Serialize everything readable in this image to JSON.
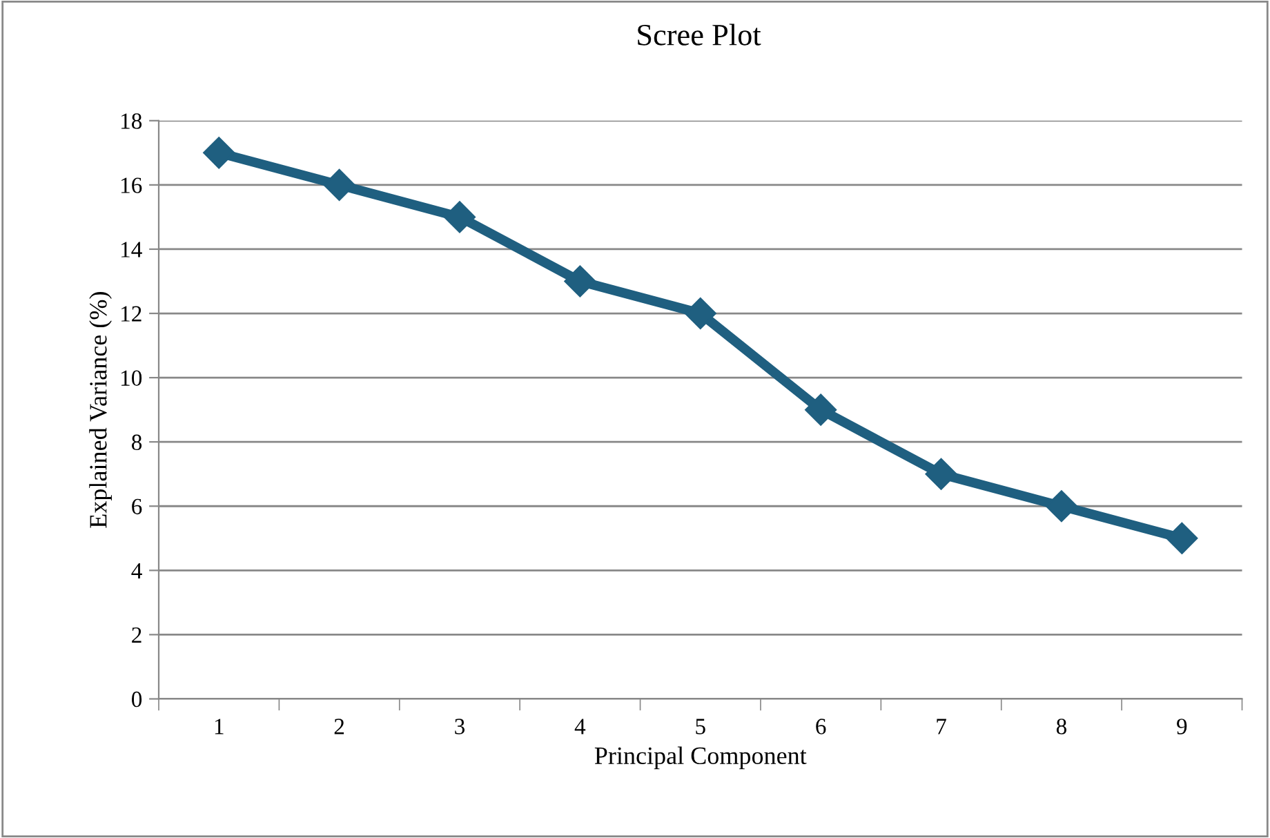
{
  "chart_data": {
    "type": "line",
    "title": "Scree Plot",
    "xlabel": "Principal Component",
    "ylabel": "Explained Variance (%)",
    "categories": [
      "1",
      "2",
      "3",
      "4",
      "5",
      "6",
      "7",
      "8",
      "9"
    ],
    "series": [
      {
        "color": "#1f5f80",
        "values": [
          17,
          16,
          15,
          13,
          12,
          9,
          7,
          6,
          5
        ]
      }
    ],
    "ylim": [
      0,
      18
    ],
    "yticks": [
      0,
      2,
      4,
      6,
      8,
      10,
      12,
      14,
      16,
      18
    ],
    "grid": "y",
    "marker": "diamond",
    "line_style": "solid",
    "legend": false
  }
}
